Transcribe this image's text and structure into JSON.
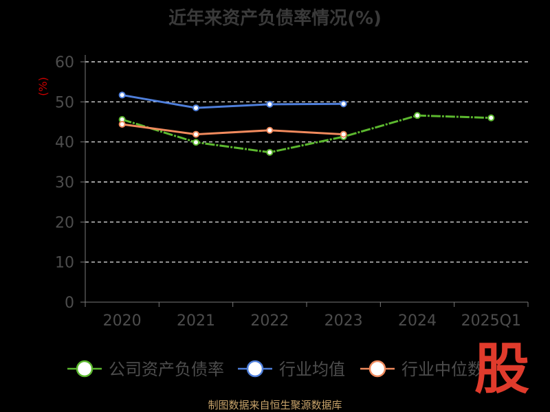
{
  "title": "近年来资产负债率情况(%)",
  "source_note": "制图数据来自恒生聚源数据库",
  "logo_text": "股",
  "colors": {
    "background": "#000000",
    "axis": "#7a7a7a",
    "grid": "#ffffff",
    "tick_text": "#4d4d4d",
    "ylabel": "#cc0000"
  },
  "chart_data": {
    "type": "line",
    "title": "近年来资产负债率情况(%)",
    "xlabel": "",
    "ylabel": "(%)",
    "categories": [
      "2020",
      "2021",
      "2022",
      "2023",
      "2024",
      "2025Q1"
    ],
    "ylim": [
      0,
      60
    ],
    "yticks": [
      "0",
      "10",
      "20",
      "30",
      "40",
      "50",
      "60"
    ],
    "grid": true,
    "legend_position": "bottom",
    "series": [
      {
        "name": "公司资产负债率",
        "color": "#5cb82f",
        "values": [
          45.6,
          39.9,
          37.4,
          41.3,
          46.6,
          46.0
        ]
      },
      {
        "name": "行业均值",
        "color": "#4f7fdb",
        "values": [
          51.7,
          48.5,
          49.4,
          49.5,
          null,
          null
        ]
      },
      {
        "name": "行业中位数",
        "color": "#f08a5d",
        "values": [
          44.4,
          41.9,
          42.9,
          41.9,
          null,
          null
        ]
      }
    ]
  }
}
